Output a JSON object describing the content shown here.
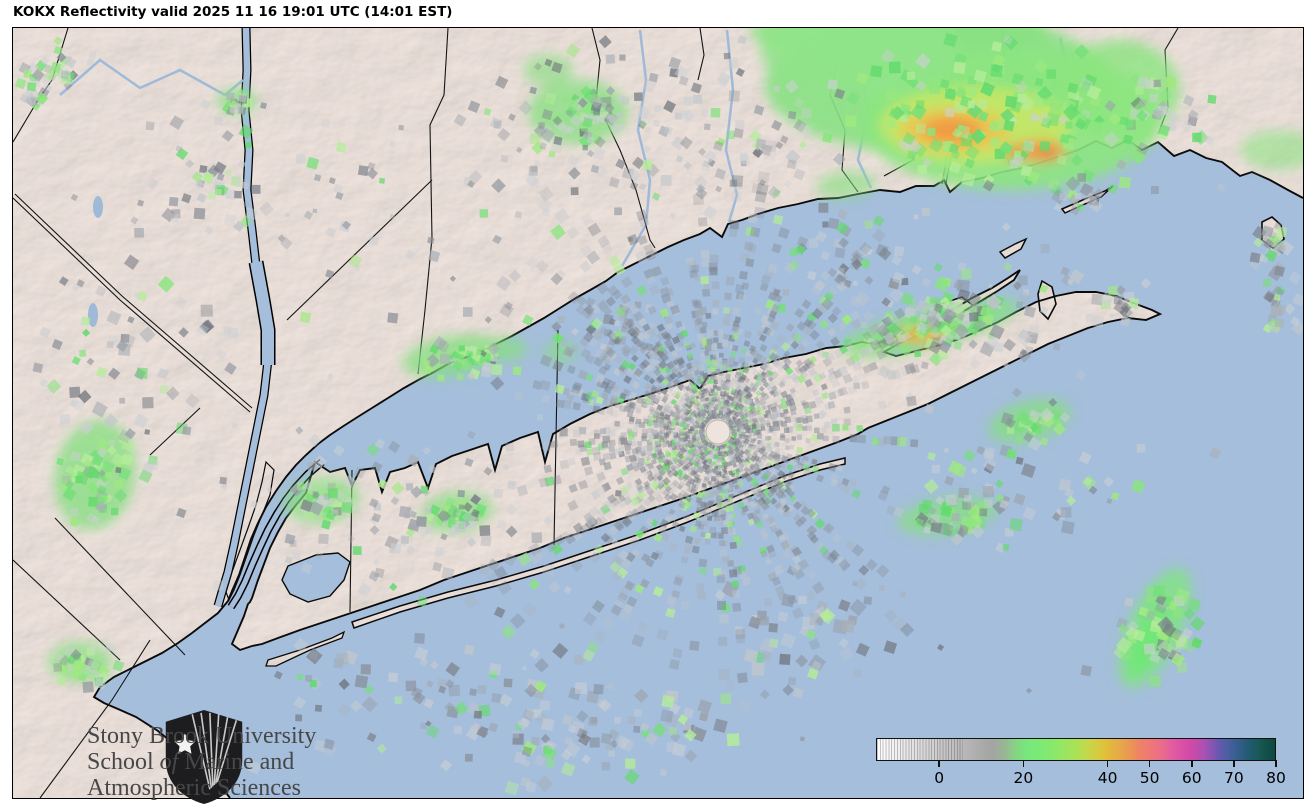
{
  "header": {
    "title": "KOKX Reflectivity valid 2025 11 16 19:01 UTC (14:01 EST)"
  },
  "map": {
    "colors": {
      "water": "#a5bedb",
      "land": "#efe4de",
      "coastline": "#0b0b0b",
      "radar_gray": "#8a9099",
      "radar_light": "#ccd0d4",
      "radar_green": "#7de57d",
      "radar_yellow": "#e0ba3c",
      "radar_orange": "#f09a45",
      "radar_red": "#ea5842"
    }
  },
  "colorbar": {
    "ticks": [
      0,
      20,
      40,
      50,
      60,
      70,
      80
    ],
    "scale_min": -15,
    "scale_max": 80,
    "key_colors": [
      "#ffffff",
      "#b0b0b0",
      "#77e77a",
      "#e0ba3c",
      "#ee8068",
      "#d44fa6",
      "#8a55b5",
      "#3a5e92",
      "#115047"
    ]
  },
  "logo": {
    "line1": "Stony Brook University",
    "line2_pre": "School ",
    "line2_italic": "of",
    "line2_post": " Marine and",
    "line3": "Atmospheric Sciences"
  }
}
